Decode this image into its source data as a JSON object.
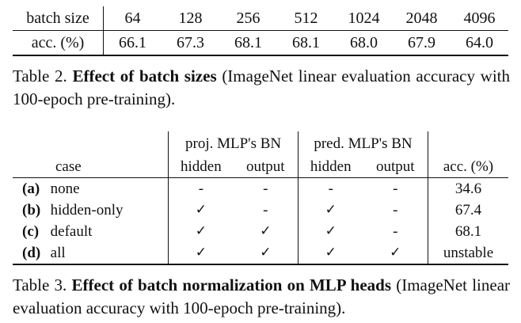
{
  "table2": {
    "row1_label": "batch size",
    "row2_label": "acc. (%)",
    "batch_sizes": [
      "64",
      "128",
      "256",
      "512",
      "1024",
      "2048",
      "4096"
    ],
    "accuracies": [
      "66.1",
      "67.3",
      "68.1",
      "68.1",
      "68.0",
      "67.9",
      "64.0"
    ],
    "caption_prefix": "Table 2.",
    "caption_bold": "Effect of batch sizes",
    "caption_rest": "(ImageNet linear evaluation accuracy with 100-epoch pre-training)."
  },
  "table3": {
    "group_proj": "proj. MLP's BN",
    "group_pred": "pred. MLP's BN",
    "col_case": "case",
    "col_hidden": "hidden",
    "col_output": "output",
    "col_acc": "acc. (%)",
    "rows": [
      {
        "label": "(a)",
        "case": "none",
        "proj_hidden": "-",
        "proj_output": "-",
        "pred_hidden": "-",
        "pred_output": "-",
        "acc": "34.6"
      },
      {
        "label": "(b)",
        "case": "hidden-only",
        "proj_hidden": "✓",
        "proj_output": "-",
        "pred_hidden": "✓",
        "pred_output": "-",
        "acc": "67.4"
      },
      {
        "label": "(c)",
        "case": "default",
        "proj_hidden": "✓",
        "proj_output": "✓",
        "pred_hidden": "✓",
        "pred_output": "-",
        "acc": "68.1"
      },
      {
        "label": "(d)",
        "case": "all",
        "proj_hidden": "✓",
        "proj_output": "✓",
        "pred_hidden": "✓",
        "pred_output": "✓",
        "acc": "unstable"
      }
    ],
    "caption_prefix": "Table 3.",
    "caption_bold": "Effect of batch normalization on MLP heads",
    "caption_rest": "(ImageNet linear evaluation accuracy with 100-epoch pre-training)."
  }
}
